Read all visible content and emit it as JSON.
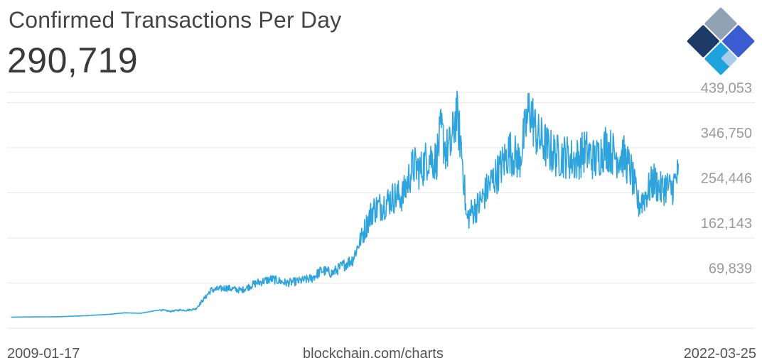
{
  "header": {
    "title": "Confirmed Transactions Per Day",
    "value": "290,719"
  },
  "footer": {
    "start_date": "2009-01-17",
    "source": "blockchain.com/charts",
    "end_date": "2022-03-25"
  },
  "colors": {
    "line": "#2ea3dc",
    "grid": "#e6e6e6",
    "logo_dark": "#1d3b66",
    "logo_blue": "#3b5bd0",
    "logo_light": "#1fa3df",
    "logo_gray": "#8fa3b4",
    "logo_pale": "#a8cde9"
  },
  "chart_data": {
    "type": "line",
    "title": "Confirmed Transactions Per Day",
    "xlabel": "",
    "ylabel": "",
    "y_ticks": [
      "439,053",
      "346,750",
      "254,446",
      "162,143",
      "69,839"
    ],
    "y_tick_values": [
      439053,
      346750,
      254446,
      162143,
      69839
    ],
    "ylim": [
      -22465,
      460000
    ],
    "grid": true,
    "series": [
      {
        "values_note": "approximate daily confirmed transactions; x in years",
        "x": [
          2009.05,
          2009.5,
          2010.0,
          2010.5,
          2011.0,
          2011.3,
          2011.6,
          2012.0,
          2012.2,
          2012.4,
          2012.5,
          2012.7,
          2013.0,
          2013.3,
          2013.6,
          2013.9,
          2014.2,
          2014.5,
          2014.8,
          2015.0,
          2015.2,
          2015.4,
          2015.6,
          2015.8,
          2016.0,
          2016.2,
          2016.4,
          2016.6,
          2016.8,
          2017.0,
          2017.15,
          2017.3,
          2017.45,
          2017.55,
          2017.65,
          2017.75,
          2017.85,
          2017.95,
          2018.0,
          2018.05,
          2018.15,
          2018.3,
          2018.5,
          2018.7,
          2018.9,
          2019.1,
          2019.3,
          2019.45,
          2019.55,
          2019.7,
          2019.85,
          2020.0,
          2020.2,
          2020.4,
          2020.6,
          2020.8,
          2021.0,
          2021.15,
          2021.3,
          2021.45,
          2021.6,
          2021.75,
          2021.9,
          2022.0,
          2022.1,
          2022.23
        ],
        "y": [
          200,
          600,
          1000,
          3000,
          6000,
          9000,
          8000,
          15000,
          12000,
          15000,
          14000,
          17000,
          55000,
          60000,
          55000,
          70000,
          78000,
          70000,
          75000,
          80000,
          96000,
          90000,
          105000,
          118000,
          170000,
          220000,
          230000,
          245000,
          250000,
          310000,
          300000,
          330000,
          320000,
          380000,
          340000,
          350000,
          420000,
          350000,
          285000,
          200000,
          215000,
          230000,
          270000,
          300000,
          340000,
          320000,
          430000,
          370000,
          360000,
          340000,
          330000,
          330000,
          320000,
          340000,
          320000,
          350000,
          330000,
          330000,
          300000,
          230000,
          250000,
          280000,
          260000,
          270000,
          260000,
          290719
        ]
      }
    ]
  }
}
